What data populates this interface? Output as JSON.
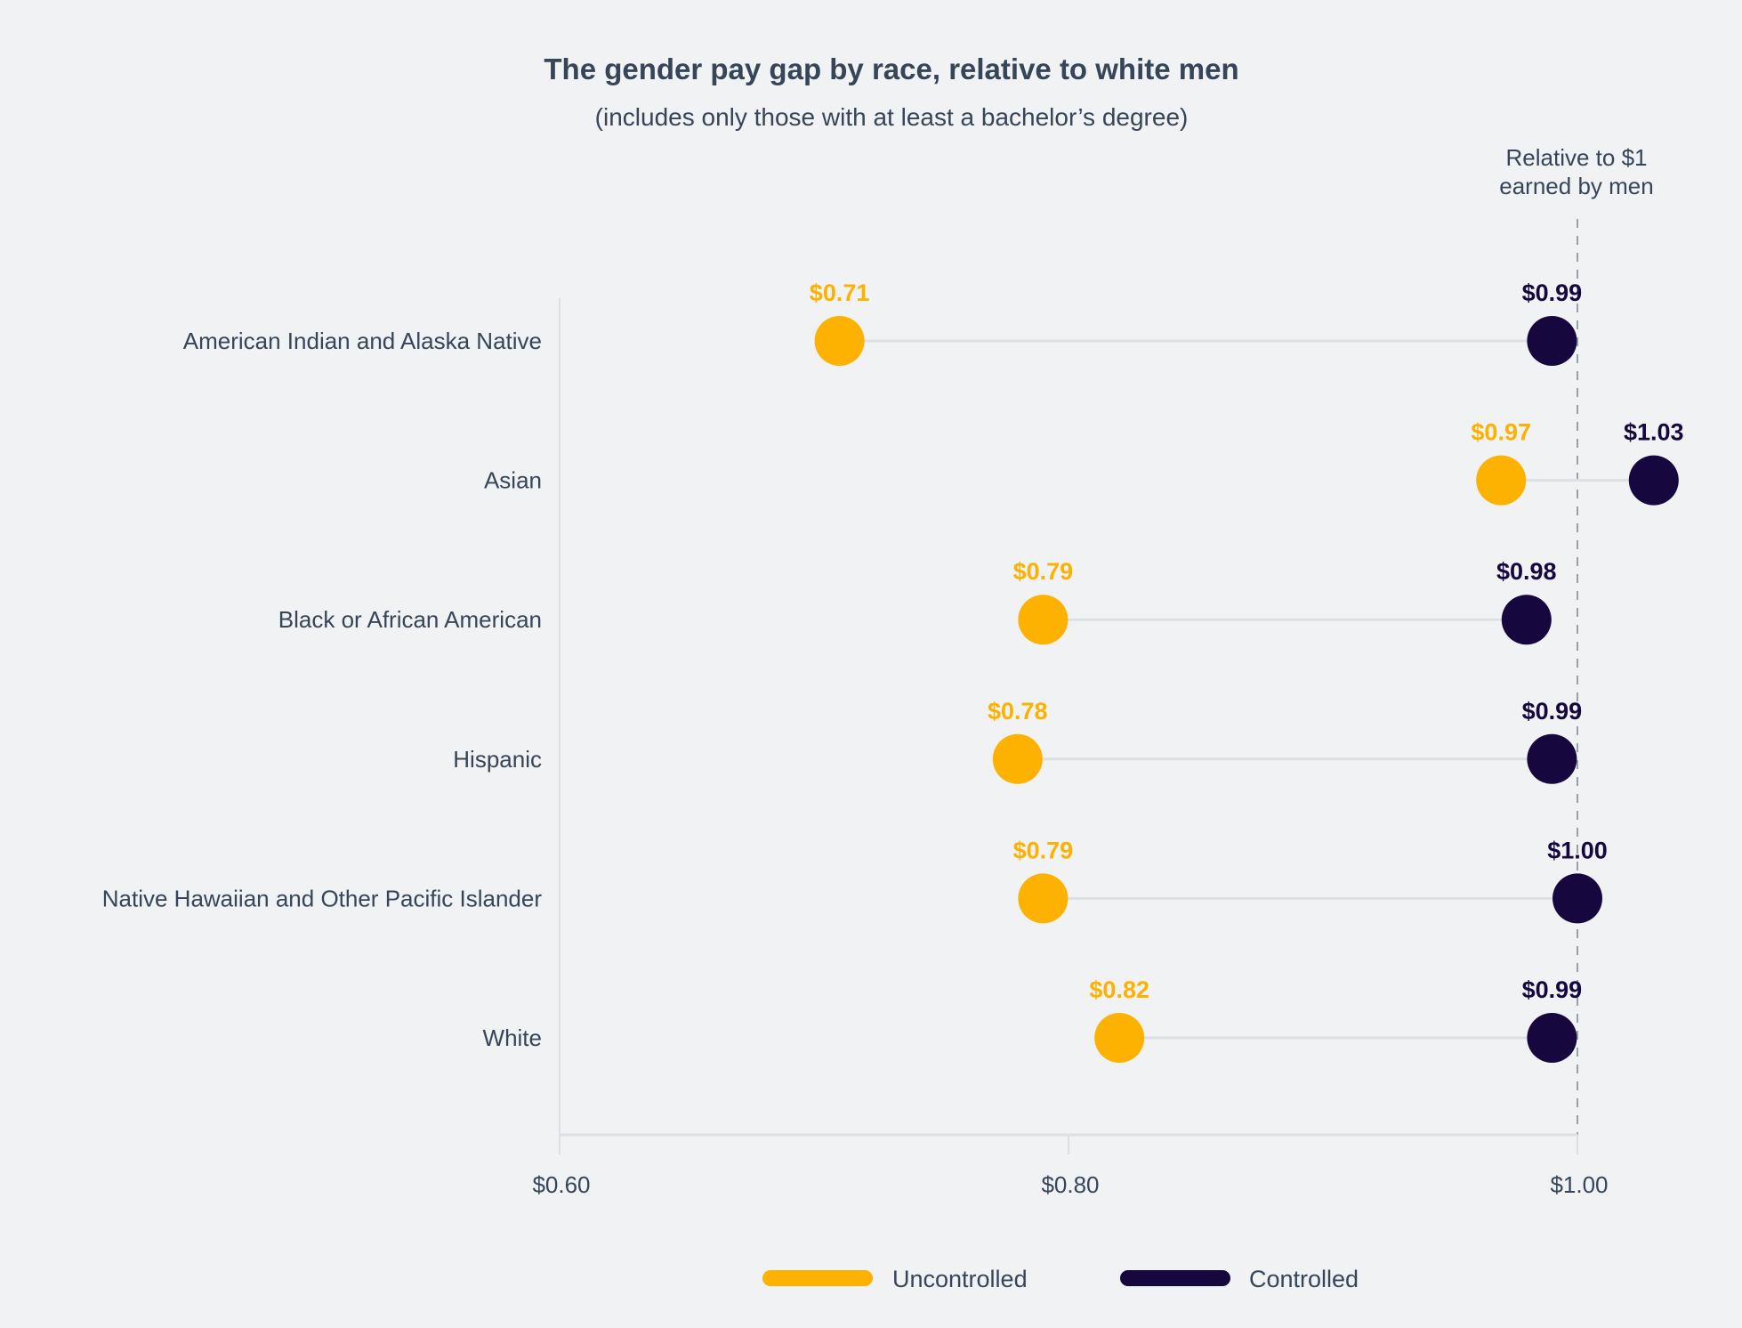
{
  "chart_data": {
    "type": "dumbbell",
    "title": "The gender pay gap by race, relative to white men",
    "subtitle": "(includes only those with at least a bachelor’s degree)",
    "reference_label": [
      "Relative to $1",
      "earned by men"
    ],
    "reference_value": 1.0,
    "xlim": [
      0.6,
      1.03
    ],
    "xticks": [
      {
        "value": 0.6,
        "label": "$0.60"
      },
      {
        "value": 0.8,
        "label": "$0.80"
      },
      {
        "value": 1.0,
        "label": "$1.00"
      }
    ],
    "categories": [
      "American Indian and Alaska Native",
      "Asian",
      "Black or African American",
      "Hispanic",
      "Native Hawaiian and Other Pacific Islander",
      "White"
    ],
    "series": [
      {
        "name": "Uncontrolled",
        "color": "#FDB100",
        "values": [
          0.71,
          0.97,
          0.79,
          0.78,
          0.79,
          0.82
        ],
        "labels": [
          "$0.71",
          "$0.97",
          "$0.79",
          "$0.78",
          "$0.79",
          "$0.82"
        ]
      },
      {
        "name": "Controlled",
        "color": "#16073F",
        "values": [
          0.99,
          1.03,
          0.98,
          0.99,
          1.0,
          0.99
        ],
        "labels": [
          "$0.99",
          "$1.03",
          "$0.98",
          "$0.99",
          "$1.00",
          "$0.99"
        ]
      }
    ],
    "legend_position": "bottom",
    "grid": false
  }
}
